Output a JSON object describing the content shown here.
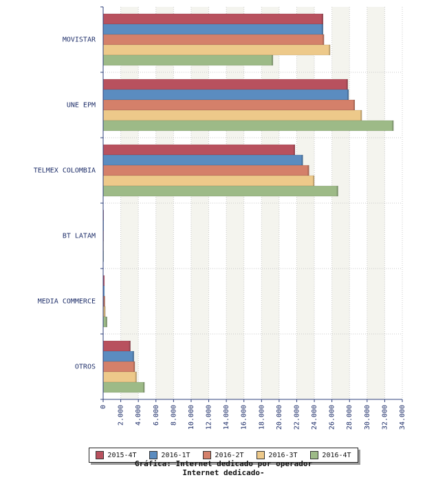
{
  "chart_data": {
    "type": "bar",
    "orientation": "horizontal",
    "categories": [
      "MOVISTAR",
      "UNE EPM",
      "TELMEX COLOMBIA",
      "BT LATAM",
      "MEDIA COMMERCE",
      "OTROS"
    ],
    "series": [
      {
        "name": "2015-4T",
        "color": "#b8515e",
        "values": [
          25000,
          27800,
          21800,
          30,
          150,
          3100
        ]
      },
      {
        "name": "2016-1T",
        "color": "#5b8cc0",
        "values": [
          25000,
          27900,
          22700,
          30,
          150,
          3500
        ]
      },
      {
        "name": "2016-2T",
        "color": "#d4806a",
        "values": [
          25100,
          28600,
          23400,
          30,
          200,
          3600
        ]
      },
      {
        "name": "2016-3T",
        "color": "#edc98a",
        "values": [
          25800,
          29400,
          24000,
          30,
          250,
          3800
        ]
      },
      {
        "name": "2016-4T",
        "color": "#9dba87",
        "values": [
          19300,
          33000,
          26700,
          50,
          450,
          4700
        ]
      }
    ],
    "xlim": [
      0,
      34000
    ],
    "xticks": [
      "0",
      "2.000",
      "4.000",
      "6.000",
      "8.000",
      "10.000",
      "12.000",
      "14.000",
      "16.000",
      "18.000",
      "20.000",
      "22.000",
      "24.000",
      "26.000",
      "28.000",
      "30.000",
      "32.000",
      "34.000"
    ],
    "xtick_step": 2000,
    "grid": true,
    "legend_position": "bottom"
  },
  "caption": {
    "line1": "Gráfica: Internet dedicado por operador",
    "line2": "Internet dedicado-"
  }
}
